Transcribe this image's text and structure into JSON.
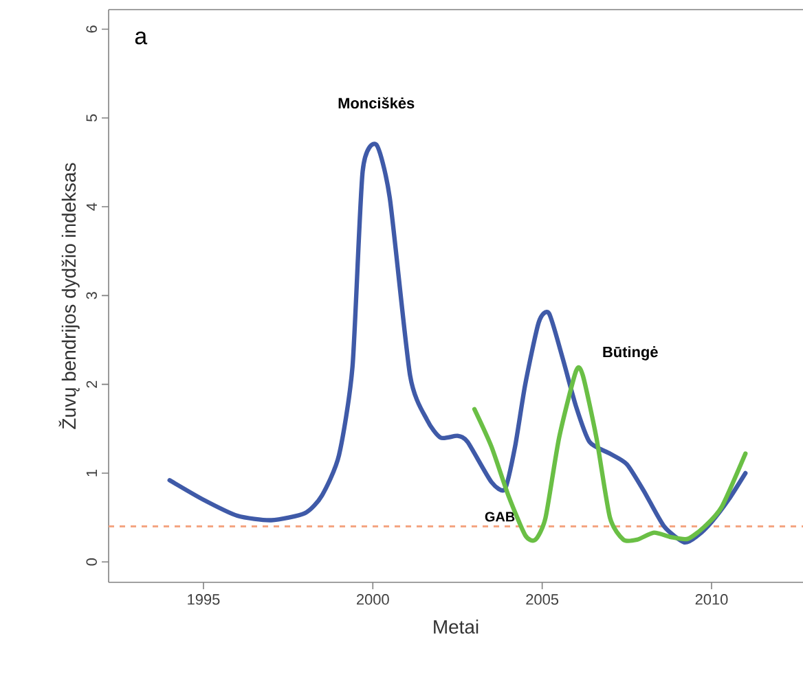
{
  "chart_data": {
    "type": "line",
    "xlabel": "Metai",
    "ylabel": "Žuvų bendrijos dydžio indeksas",
    "xlim": [
      1992.2,
      2012.7
    ],
    "ylim": [
      -0.23,
      6.22
    ],
    "xticks": [
      1995,
      2000,
      2005,
      2010
    ],
    "yticks": [
      0,
      1,
      2,
      3,
      4,
      5,
      6
    ],
    "series": [
      {
        "name": "Monciškės",
        "color": "#3f5aa8",
        "x": [
          1994,
          1995,
          1996,
          1997,
          1998,
          1998.5,
          1999,
          1999.4,
          1999.7,
          2000.1,
          2000.5,
          2001.1,
          2001.6,
          2002,
          2002.5,
          2002.8,
          2003.5,
          2003.9,
          2004.2,
          2004.5,
          2004.9,
          2005.2,
          2005.6,
          2006,
          2006.4,
          2007,
          2007.5,
          2008,
          2008.6,
          2009.2,
          2009.6,
          2010,
          2010.5,
          2011
        ],
        "values": [
          0.92,
          0.7,
          0.52,
          0.47,
          0.55,
          0.75,
          1.2,
          2.2,
          4.4,
          4.7,
          4.1,
          2.1,
          1.6,
          1.4,
          1.42,
          1.35,
          0.9,
          0.82,
          1.3,
          2.0,
          2.7,
          2.8,
          2.3,
          1.75,
          1.35,
          1.22,
          1.1,
          0.8,
          0.4,
          0.22,
          0.3,
          0.45,
          0.7,
          1.0
        ]
      },
      {
        "name": "Būtingė",
        "color": "#6abf45",
        "x": [
          2003,
          2003.5,
          2004,
          2004.5,
          2004.8,
          2005.1,
          2005.5,
          2006,
          2006.2,
          2006.6,
          2007,
          2007.4,
          2007.8,
          2008.3,
          2008.8,
          2009.3,
          2009.8,
          2010.3,
          2011
        ],
        "values": [
          1.72,
          1.3,
          0.75,
          0.3,
          0.25,
          0.5,
          1.4,
          2.15,
          2.1,
          1.4,
          0.5,
          0.25,
          0.25,
          0.33,
          0.28,
          0.26,
          0.4,
          0.62,
          1.22
        ]
      }
    ],
    "ref_lines": [
      {
        "axis": "y",
        "value": 0.4,
        "label": "GAB",
        "color": "#f4a582",
        "line_style": "dashed"
      }
    ],
    "annotations": [
      "a"
    ],
    "grid": false
  }
}
